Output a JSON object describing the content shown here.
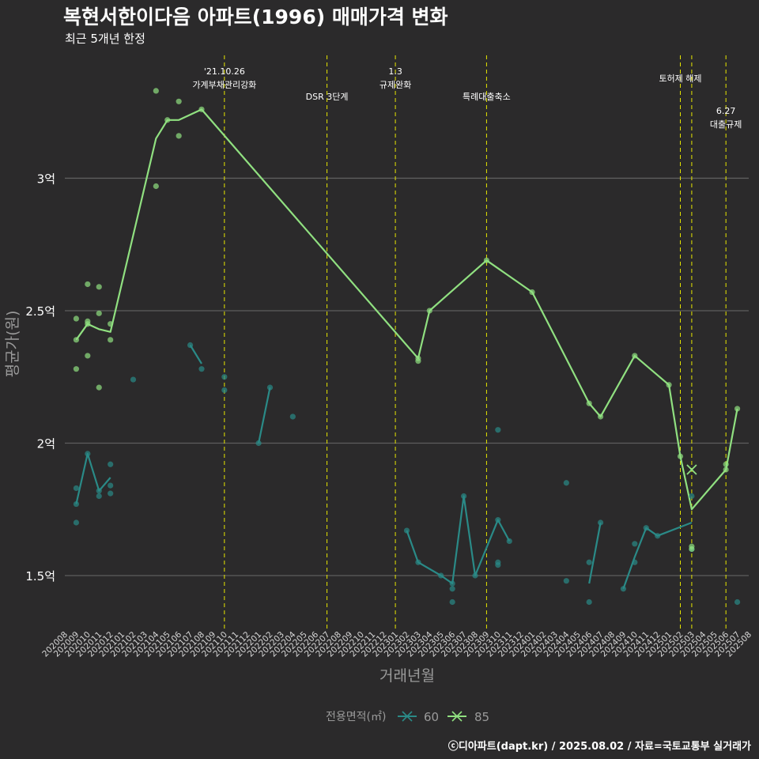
{
  "chart_data": {
    "type": "line",
    "title": "복현서한이다음 아파트(1996) 매매가격 변화",
    "subtitle": "최근 5개년 한정",
    "xlabel": "거래년월",
    "ylabel": "평균가(원)",
    "caption": "ⓒ디아파트(dapt.kr) / 2025.08.02 / 자료=국토교통부 실거래가",
    "legend_title": "전용면적(㎡)",
    "y_ticks": [
      1.5,
      2,
      2.5,
      3
    ],
    "y_tick_labels": [
      "1.5억",
      "2억",
      "2.5억",
      "3억"
    ],
    "ylim": [
      1.3,
      3.47
    ],
    "x_range": [
      "202008",
      "202508"
    ],
    "x_ticks": [
      "202008",
      "202009",
      "202010",
      "202011",
      "202012",
      "202101",
      "202102",
      "202103",
      "202104",
      "202105",
      "202106",
      "202107",
      "202108",
      "202109",
      "202110",
      "202111",
      "202112",
      "202201",
      "202202",
      "202203",
      "202204",
      "202205",
      "202206",
      "202207",
      "202208",
      "202209",
      "202210",
      "202211",
      "202212",
      "202301",
      "202302",
      "202303",
      "202304",
      "202305",
      "202306",
      "202307",
      "202308",
      "202309",
      "202310",
      "202311",
      "202312",
      "202401",
      "202402",
      "202403",
      "202404",
      "202405",
      "202406",
      "202407",
      "202408",
      "202409",
      "202410",
      "202411",
      "202412",
      "202501",
      "202502",
      "202503",
      "202504",
      "202505",
      "202506",
      "202507",
      "202508"
    ],
    "events": [
      {
        "month": "202110",
        "label": "'21.10.26\n가계부채관리강화",
        "row": 0
      },
      {
        "month": "202207",
        "label": "DSR 3단계",
        "row": 2
      },
      {
        "month": "202301",
        "label": "1.3\n규제완화",
        "row": 0
      },
      {
        "month": "202309",
        "label": "특례대출축소",
        "row": 2
      },
      {
        "month": "202502",
        "label": "토허제 해제",
        "row": 1
      },
      {
        "month": "202503",
        "label": "",
        "row": 1
      },
      {
        "month": "202506",
        "label": "6.27\n대출규제",
        "row": 3
      }
    ],
    "series": [
      {
        "name": "60",
        "color": "#2a8a87",
        "lines": [
          [
            [
              "202009",
              1.77
            ],
            [
              "202010",
              1.96
            ],
            [
              "202011",
              1.82
            ],
            [
              "202012",
              1.87
            ]
          ],
          [
            [
              "202107",
              2.37
            ],
            [
              "202108",
              2.3
            ]
          ],
          [
            [
              "202201",
              2.0
            ],
            [
              "202202",
              2.21
            ]
          ],
          [
            [
              "202302",
              1.67
            ],
            [
              "202303",
              1.55
            ],
            [
              "202305",
              1.5
            ],
            [
              "202306",
              1.47
            ],
            [
              "202307",
              1.8
            ],
            [
              "202308",
              1.5
            ],
            [
              "202310",
              1.71
            ],
            [
              "202311",
              1.63
            ]
          ],
          [
            [
              "202406",
              1.47
            ],
            [
              "202407",
              1.7
            ]
          ],
          [
            [
              "202409",
              1.45
            ],
            [
              "202410",
              1.57
            ],
            [
              "202411",
              1.68
            ],
            [
              "202412",
              1.65
            ],
            [
              "202503",
              1.7
            ]
          ]
        ],
        "points": [
          [
            "202009",
            1.83
          ],
          [
            "202009",
            1.7
          ],
          [
            "202009",
            1.77
          ],
          [
            "202010",
            1.96
          ],
          [
            "202011",
            1.82
          ],
          [
            "202011",
            1.8
          ],
          [
            "202012",
            1.92
          ],
          [
            "202012",
            1.84
          ],
          [
            "202012",
            1.81
          ],
          [
            "202102",
            2.24
          ],
          [
            "202107",
            2.37
          ],
          [
            "202108",
            2.28
          ],
          [
            "202110",
            2.25
          ],
          [
            "202110",
            2.2
          ],
          [
            "202201",
            2.0
          ],
          [
            "202202",
            2.21
          ],
          [
            "202204",
            2.1
          ],
          [
            "202302",
            1.67
          ],
          [
            "202303",
            1.55
          ],
          [
            "202305",
            1.5
          ],
          [
            "202306",
            1.47
          ],
          [
            "202306",
            1.45
          ],
          [
            "202306",
            1.4
          ],
          [
            "202307",
            1.8
          ],
          [
            "202308",
            1.5
          ],
          [
            "202310",
            2.05
          ],
          [
            "202310",
            1.71
          ],
          [
            "202310",
            1.55
          ],
          [
            "202310",
            1.54
          ],
          [
            "202311",
            1.63
          ],
          [
            "202404",
            1.85
          ],
          [
            "202404",
            1.48
          ],
          [
            "202406",
            1.55
          ],
          [
            "202406",
            1.4
          ],
          [
            "202407",
            1.7
          ],
          [
            "202409",
            1.45
          ],
          [
            "202410",
            1.62
          ],
          [
            "202410",
            1.55
          ],
          [
            "202411",
            1.68
          ],
          [
            "202412",
            1.65
          ],
          [
            "202503",
            1.8
          ],
          [
            "202503",
            1.6
          ],
          [
            "202507",
            1.4
          ]
        ]
      },
      {
        "name": "85",
        "color": "#90e080",
        "lines": [
          [
            [
              "202009",
              2.39
            ],
            [
              "202010",
              2.45
            ],
            [
              "202011",
              2.43
            ],
            [
              "202012",
              2.42
            ],
            [
              "202104",
              3.15
            ],
            [
              "202105",
              3.22
            ],
            [
              "202106",
              3.22
            ],
            [
              "202108",
              3.26
            ],
            [
              "202303",
              2.32
            ],
            [
              "202304",
              2.5
            ],
            [
              "202309",
              2.69
            ],
            [
              "202401",
              2.57
            ],
            [
              "202406",
              2.15
            ],
            [
              "202407",
              2.1
            ],
            [
              "202410",
              2.33
            ],
            [
              "202501",
              2.22
            ],
            [
              "202502",
              1.95
            ],
            [
              "202503",
              1.75
            ],
            [
              "202506",
              1.9
            ],
            [
              "202507",
              2.13
            ]
          ]
        ],
        "points": [
          [
            "202009",
            2.47
          ],
          [
            "202009",
            2.39
          ],
          [
            "202009",
            2.28
          ],
          [
            "202010",
            2.6
          ],
          [
            "202010",
            2.46
          ],
          [
            "202010",
            2.45
          ],
          [
            "202010",
            2.33
          ],
          [
            "202011",
            2.59
          ],
          [
            "202011",
            2.49
          ],
          [
            "202011",
            2.21
          ],
          [
            "202012",
            2.45
          ],
          [
            "202012",
            2.39
          ],
          [
            "202104",
            3.33
          ],
          [
            "202104",
            2.97
          ],
          [
            "202105",
            3.22
          ],
          [
            "202106",
            3.29
          ],
          [
            "202106",
            3.16
          ],
          [
            "202108",
            3.26
          ],
          [
            "202303",
            2.32
          ],
          [
            "202303",
            2.31
          ],
          [
            "202304",
            2.5
          ],
          [
            "202309",
            2.69
          ],
          [
            "202401",
            2.57
          ],
          [
            "202406",
            2.15
          ],
          [
            "202407",
            2.1
          ],
          [
            "202410",
            2.33
          ],
          [
            "202501",
            2.22
          ],
          [
            "202502",
            1.95
          ],
          [
            "202503",
            1.61
          ],
          [
            "202503",
            1.6
          ],
          [
            "202506",
            1.9
          ],
          [
            "202506",
            1.92
          ],
          [
            "202507",
            2.13
          ]
        ],
        "cross_markers": [
          [
            "202503",
            1.9
          ]
        ]
      }
    ]
  }
}
